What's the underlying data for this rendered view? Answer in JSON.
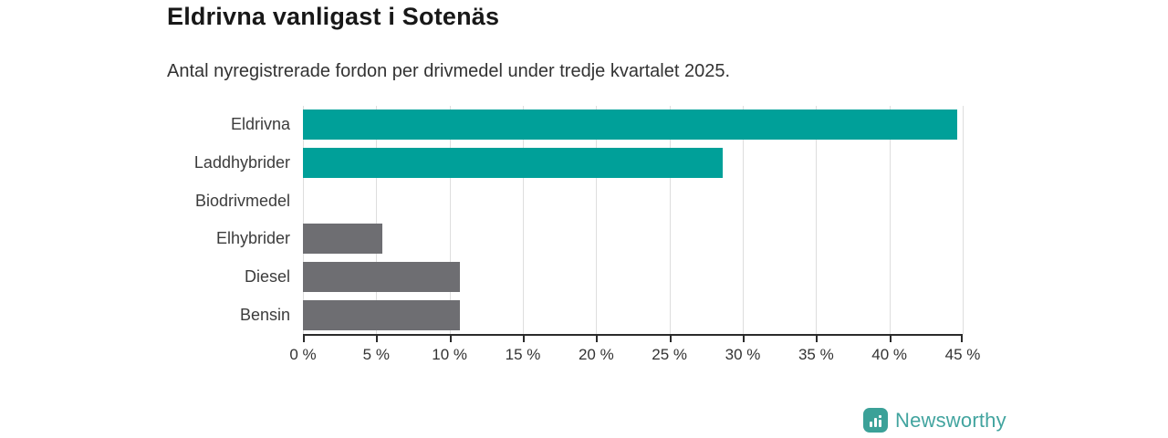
{
  "header": {
    "title": "Eldrivna vanligast i Sotenäs",
    "subtitle": "Antal nyregistrerade fordon per drivmedel under tredje kvartalet 2025."
  },
  "chart_data": {
    "type": "bar",
    "orientation": "horizontal",
    "title": "Eldrivna vanligast i Sotenäs",
    "subtitle": "Antal nyregistrerade fordon per drivmedel under tredje kvartalet 2025.",
    "categories": [
      "Eldrivna",
      "Laddhybrider",
      "Biodrivmedel",
      "Elhybrider",
      "Diesel",
      "Bensin"
    ],
    "values": [
      44.6,
      28.6,
      0,
      5.4,
      10.7,
      10.7
    ],
    "unit": "%",
    "bar_colors": [
      "#00a099",
      "#00a099",
      "#6e6e72",
      "#6e6e72",
      "#6e6e72",
      "#6e6e72"
    ],
    "highlight_color": "#00a099",
    "default_color": "#6e6e72",
    "xlim": [
      0,
      45
    ],
    "xticks": [
      0,
      5,
      10,
      15,
      20,
      25,
      30,
      35,
      40,
      45
    ],
    "xtick_suffix": " %",
    "grid": true,
    "gridline_color": "#dedede",
    "axis_color": "#2b2b2b",
    "legend": "none"
  },
  "footer": {
    "brand": "Newsworthy",
    "brand_color": "#42a49f",
    "icon": "newsworthy-bar-chart-pin-icon",
    "icon_color": "#3ba198"
  }
}
